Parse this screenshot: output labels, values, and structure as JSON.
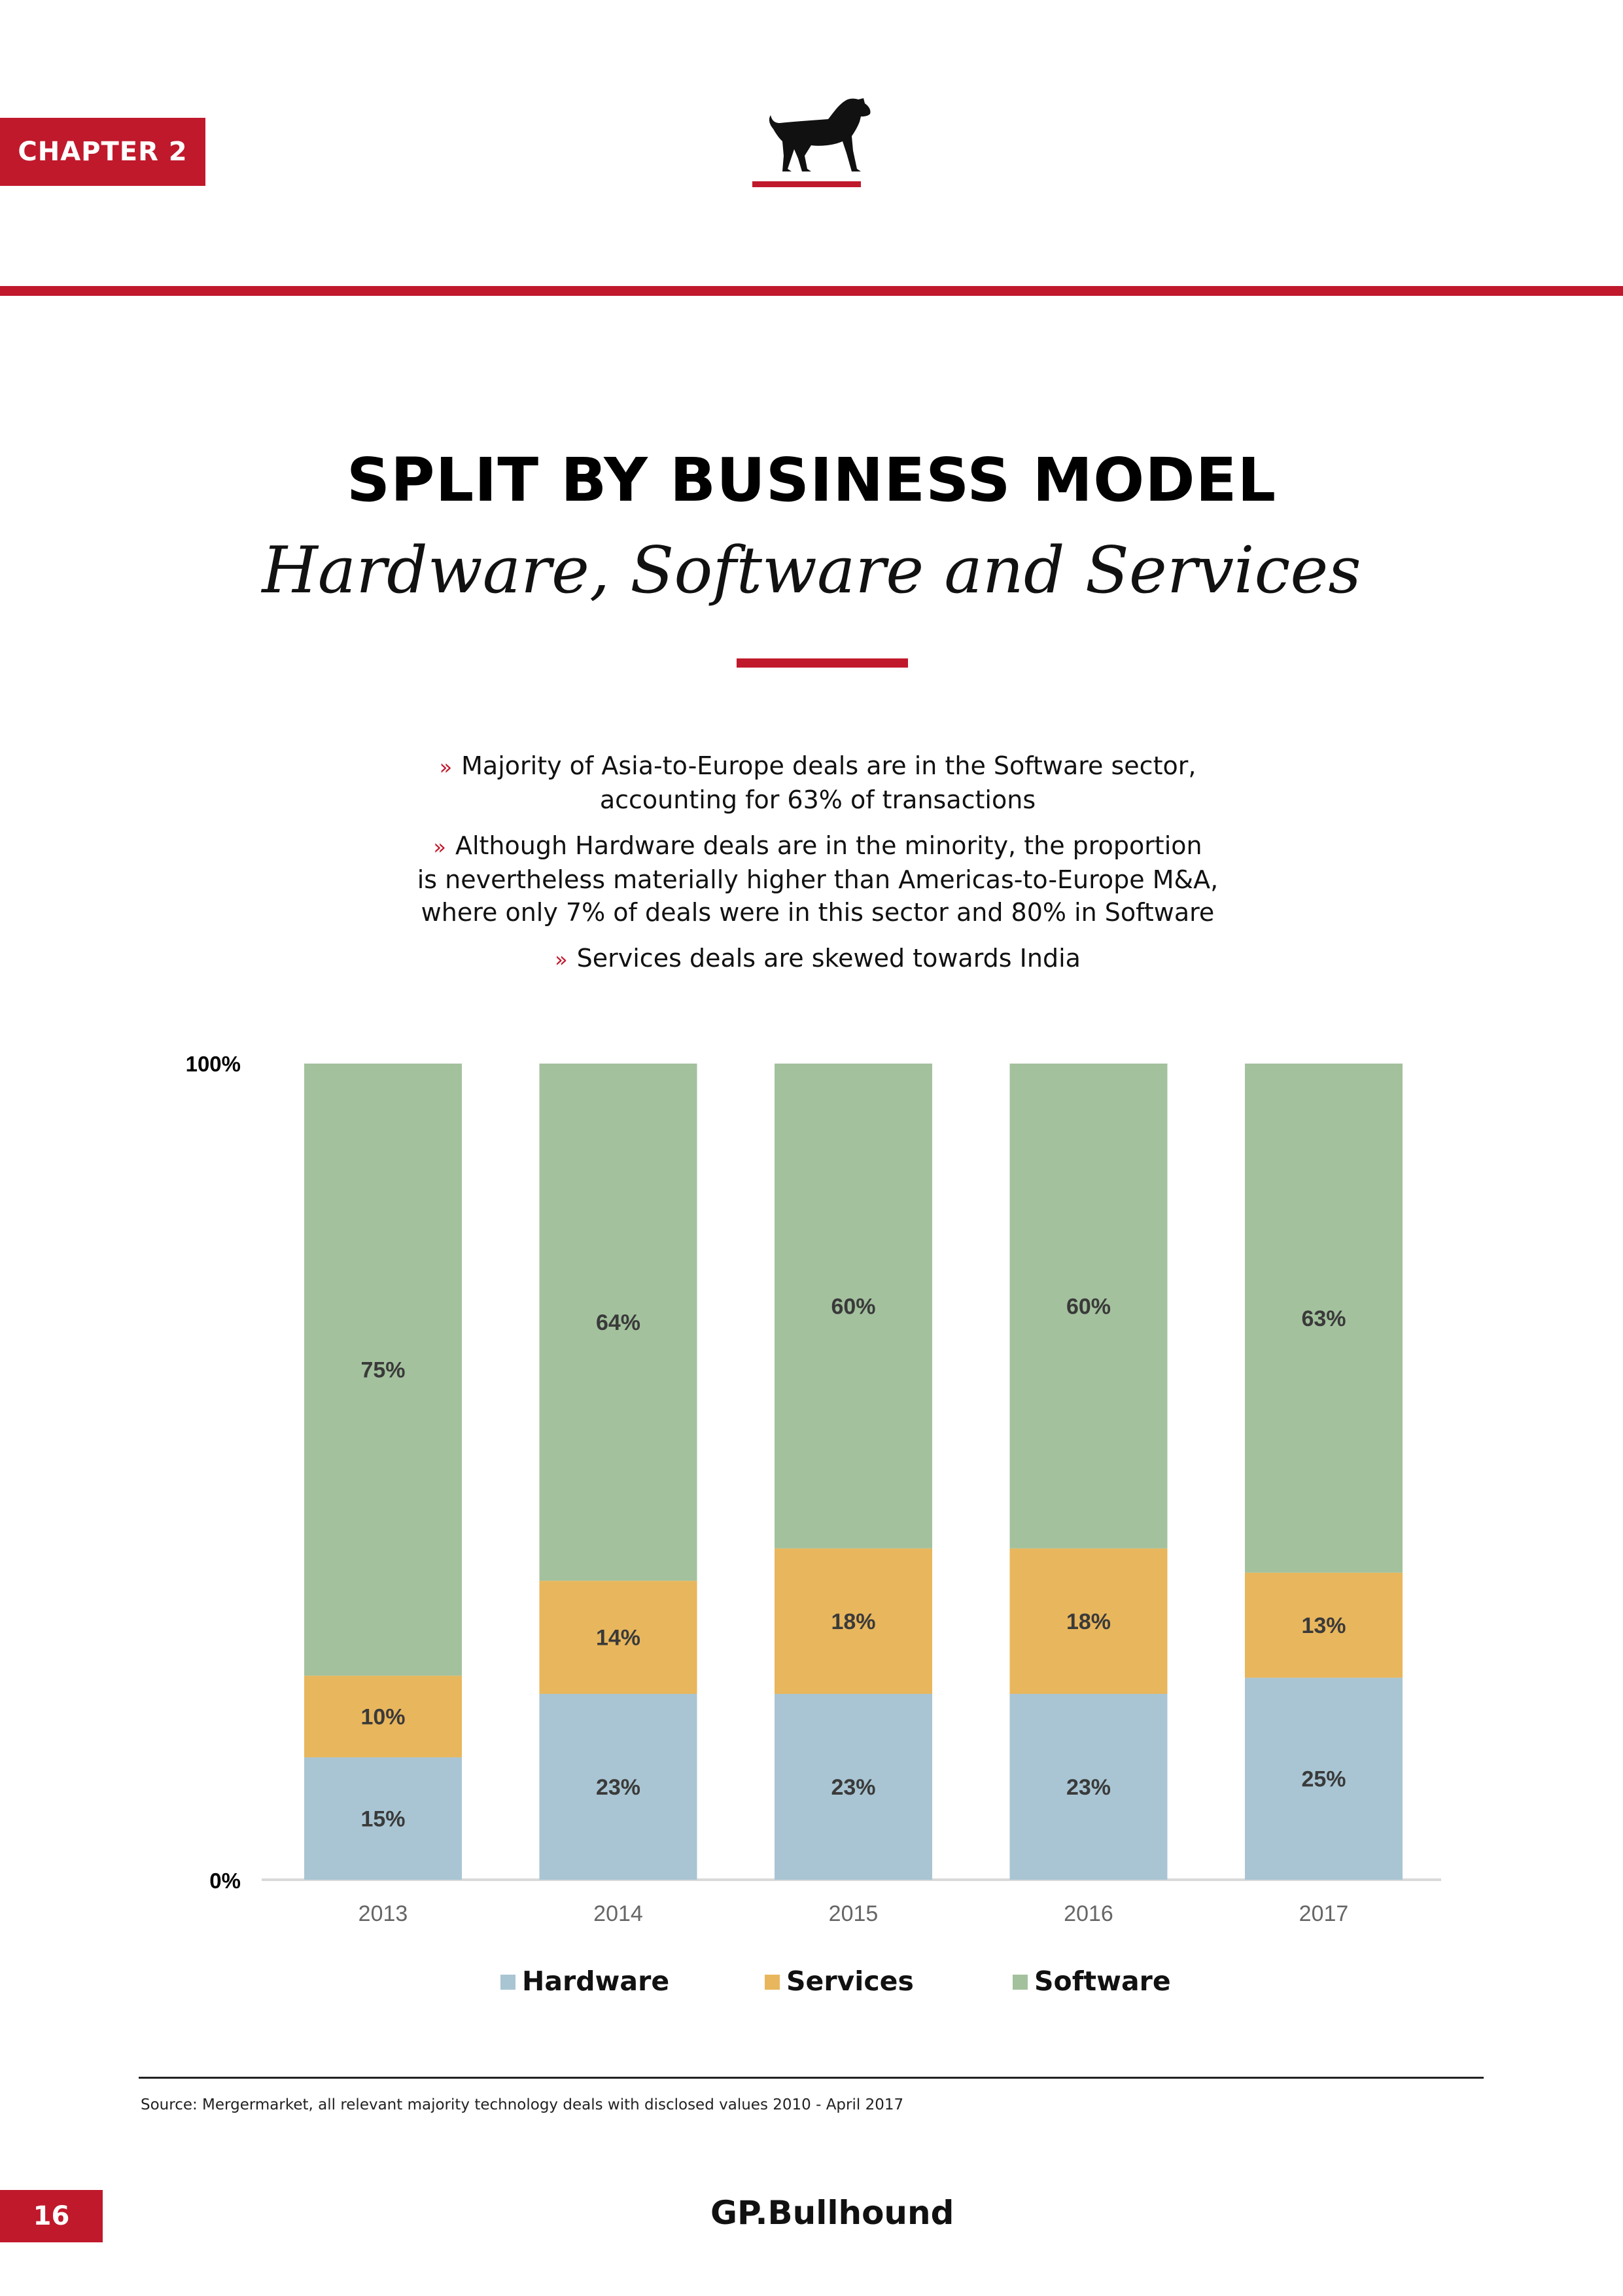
{
  "header": {
    "chapter_label": "CHAPTER 2"
  },
  "heading": {
    "title": "SPLIT BY BUSINESS MODEL",
    "subtitle": "Hardware, Software and Services"
  },
  "bullets": {
    "marker": "»",
    "items": [
      [
        "Majority of Asia-to-Europe deals are in the Software sector,",
        "accounting for 63% of transactions"
      ],
      [
        "Although Hardware deals are in the minority, the proportion",
        "is nevertheless materially higher than Americas-to-Europe M&A,",
        "where only 7% of deals were in this sector and 80% in Software"
      ],
      [
        "Services deals are skewed towards India"
      ]
    ]
  },
  "colors": {
    "accent": "#c0192c",
    "hardware": "#a9c5d3",
    "services": "#e8b65c",
    "software": "#a3c19d",
    "label": "#3a3a3a",
    "axis": "#d9d9d9"
  },
  "chart_data": {
    "type": "bar",
    "stacked": true,
    "categories": [
      "2013",
      "2014",
      "2015",
      "2016",
      "2017"
    ],
    "series": [
      {
        "name": "Hardware",
        "values": [
          15,
          23,
          23,
          23,
          25
        ],
        "labels": [
          "15%",
          "23%",
          "23%",
          "23%",
          "25%"
        ],
        "color_key": "hardware"
      },
      {
        "name": "Services",
        "values": [
          10,
          14,
          18,
          18,
          13
        ],
        "labels": [
          "10%",
          "14%",
          "18%",
          "18%",
          "13%"
        ],
        "color_key": "services"
      },
      {
        "name": "Software",
        "values": [
          75,
          64,
          60,
          60,
          63
        ],
        "labels": [
          "75%",
          "64%",
          "60%",
          "60%",
          "63%"
        ],
        "color_key": "software"
      }
    ],
    "y_ticks": [
      "0%",
      "100%"
    ],
    "ylim": [
      0,
      100
    ],
    "legend_position": "bottom",
    "title": "",
    "xlabel": "",
    "ylabel": ""
  },
  "footer": {
    "source": "Source: Mergermarket, all relevant majority technology deals with disclosed values 2010 - April 2017",
    "page_number": "16",
    "brand": "GP.Bullhound"
  }
}
